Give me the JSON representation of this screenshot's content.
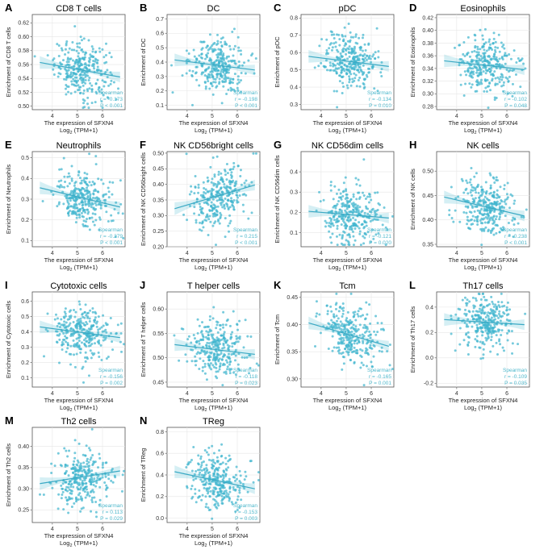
{
  "figure": {
    "xlabel_line1": "The expression of SFXN4",
    "xlabel_line2_main": "Log",
    "xlabel_line2_sub": "2",
    "xlabel_line2_rest": " (TPM+1)",
    "point_color": "#41b6cf",
    "line_color": "#3aa9c4"
  },
  "chart_data": [
    {
      "letter": "A",
      "title": "CD8 T cells",
      "type": "scatter",
      "ylabel": "Enrichment of CD8 T cells",
      "xlim": [
        3.2,
        6.9
      ],
      "xticks": [
        4,
        5,
        6
      ],
      "ylim": [
        0.495,
        0.632
      ],
      "yticks": [
        0.5,
        0.52,
        0.54,
        0.56,
        0.58,
        0.6,
        0.62
      ],
      "ytick_labels": [
        "0.50",
        "0.52",
        "0.54",
        "0.56",
        "0.58",
        "0.60",
        "0.62"
      ],
      "fit": {
        "y_start": 0.563,
        "y_end": 0.542
      },
      "stats": {
        "method": "Spearman",
        "r": "r = -0.173",
        "p": "P < 0.001"
      }
    },
    {
      "letter": "B",
      "title": "DC",
      "type": "scatter",
      "ylabel": "Enrichment of DC",
      "xlim": [
        3.2,
        6.9
      ],
      "xticks": [
        4,
        5,
        6
      ],
      "ylim": [
        0.07,
        0.73
      ],
      "yticks": [
        0.1,
        0.2,
        0.3,
        0.4,
        0.5,
        0.6,
        0.7
      ],
      "ytick_labels": [
        "0.1",
        "0.2",
        "0.3",
        "0.4",
        "0.5",
        "0.6",
        "0.7"
      ],
      "fit": {
        "y_start": 0.415,
        "y_end": 0.345
      },
      "stats": {
        "method": "Spearman",
        "r": "r = -0.198",
        "p": "P < 0.001"
      }
    },
    {
      "letter": "C",
      "title": "pDC",
      "type": "scatter",
      "ylabel": "Enrichment of pDC",
      "xlim": [
        3.2,
        6.9
      ],
      "xticks": [
        4,
        5,
        6
      ],
      "ylim": [
        0.27,
        0.82
      ],
      "yticks": [
        0.3,
        0.4,
        0.5,
        0.6,
        0.7,
        0.8
      ],
      "ytick_labels": [
        "0.3",
        "0.4",
        "0.5",
        "0.6",
        "0.7",
        "0.8"
      ],
      "fit": {
        "y_start": 0.578,
        "y_end": 0.52
      },
      "stats": {
        "method": "Spearman",
        "r": "r = -0.134",
        "p": "P = 0.010"
      }
    },
    {
      "letter": "D",
      "title": "Eosinophils",
      "type": "scatter",
      "ylabel": "Enrichment of Eosinophils",
      "xlim": [
        3.2,
        6.9
      ],
      "xticks": [
        4,
        5,
        6
      ],
      "ylim": [
        0.275,
        0.425
      ],
      "yticks": [
        0.28,
        0.3,
        0.32,
        0.34,
        0.36,
        0.38,
        0.4,
        0.42
      ],
      "ytick_labels": [
        "0.28",
        "0.30",
        "0.32",
        "0.34",
        "0.36",
        "0.38",
        "0.40",
        "0.42"
      ],
      "fit": {
        "y_start": 0.352,
        "y_end": 0.338
      },
      "stats": {
        "method": "Spearman",
        "r": "r = -0.102",
        "p": "P = 0.048"
      }
    },
    {
      "letter": "E",
      "title": "Neutrophils",
      "type": "scatter",
      "ylabel": "Enrichment of Neutrophils",
      "xlim": [
        3.2,
        6.9
      ],
      "xticks": [
        4,
        5,
        6
      ],
      "ylim": [
        0.07,
        0.53
      ],
      "yticks": [
        0.1,
        0.2,
        0.3,
        0.4,
        0.5
      ],
      "ytick_labels": [
        "0.1",
        "0.2",
        "0.3",
        "0.4",
        "0.5"
      ],
      "fit": {
        "y_start": 0.355,
        "y_end": 0.262
      },
      "stats": {
        "method": "Spearman",
        "r": "r = -0.279",
        "p": "P < 0.001"
      }
    },
    {
      "letter": "F",
      "title": "NK CD56bright cells",
      "type": "scatter",
      "ylabel": "Enrichment of NK CD56bright cells",
      "xlim": [
        3.2,
        6.9
      ],
      "xticks": [
        4,
        5,
        6
      ],
      "ylim": [
        0.2,
        0.505
      ],
      "yticks": [
        0.2,
        0.25,
        0.3,
        0.35,
        0.4,
        0.45,
        0.5
      ],
      "ytick_labels": [
        "0.20",
        "0.25",
        "0.30",
        "0.35",
        "0.40",
        "0.45",
        "0.50"
      ],
      "fit": {
        "y_start": 0.322,
        "y_end": 0.398
      },
      "stats": {
        "method": "Spearman",
        "r": "r = 0.215",
        "p": "P < 0.001"
      }
    },
    {
      "letter": "G",
      "title": "NK CD56dim cells",
      "type": "scatter",
      "ylabel": "Enrichment of NK CD56dim cells",
      "xlim": [
        3.2,
        6.9
      ],
      "xticks": [
        4,
        5,
        6
      ],
      "ylim": [
        0.03,
        0.5
      ],
      "yticks": [
        0.1,
        0.2,
        0.3,
        0.4
      ],
      "ytick_labels": [
        "0.1",
        "0.2",
        "0.3",
        "0.4"
      ],
      "fit": {
        "y_start": 0.205,
        "y_end": 0.172
      },
      "stats": {
        "method": "Spearman",
        "r": "r = -0.121",
        "p": "P = 0.020"
      }
    },
    {
      "letter": "H",
      "title": "NK cells",
      "type": "scatter",
      "ylabel": "Enrichment of NK cells",
      "xlim": [
        3.2,
        6.9
      ],
      "xticks": [
        4,
        5,
        6
      ],
      "ylim": [
        0.345,
        0.54
      ],
      "yticks": [
        0.35,
        0.4,
        0.45,
        0.5
      ],
      "ytick_labels": [
        "0.35",
        "0.40",
        "0.45",
        "0.50"
      ],
      "fit": {
        "y_start": 0.447,
        "y_end": 0.408
      },
      "stats": {
        "method": "Spearman",
        "r": "r = -0.238",
        "p": "P < 0.001"
      }
    },
    {
      "letter": "I",
      "title": "Cytotoxic cells",
      "type": "scatter",
      "ylabel": "Enrichment of Cytotoxic cells",
      "xlim": [
        3.2,
        6.9
      ],
      "xticks": [
        4,
        5,
        6
      ],
      "ylim": [
        0.04,
        0.66
      ],
      "yticks": [
        0.1,
        0.2,
        0.3,
        0.4,
        0.5,
        0.6
      ],
      "ytick_labels": [
        "0.1",
        "0.2",
        "0.3",
        "0.4",
        "0.5",
        "0.6"
      ],
      "fit": {
        "y_start": 0.432,
        "y_end": 0.362
      },
      "stats": {
        "method": "Spearman",
        "r": "r = -0.156",
        "p": "P = 0.002"
      }
    },
    {
      "letter": "J",
      "title": "T helper cells",
      "type": "scatter",
      "ylabel": "Enrichment of T helper cells",
      "xlim": [
        3.2,
        6.9
      ],
      "xticks": [
        4,
        5,
        6
      ],
      "ylim": [
        0.44,
        0.635
      ],
      "yticks": [
        0.45,
        0.5,
        0.55,
        0.6
      ],
      "ytick_labels": [
        "0.45",
        "0.50",
        "0.55",
        "0.60"
      ],
      "fit": {
        "y_start": 0.527,
        "y_end": 0.507
      },
      "stats": {
        "method": "Spearman",
        "r": "r = -0.118",
        "p": "P = 0.023"
      }
    },
    {
      "letter": "K",
      "title": "Tcm",
      "type": "scatter",
      "ylabel": "Enrichment of Tcm",
      "xlim": [
        3.2,
        6.9
      ],
      "xticks": [
        4,
        5,
        6
      ],
      "ylim": [
        0.285,
        0.46
      ],
      "yticks": [
        0.3,
        0.35,
        0.4,
        0.45
      ],
      "ytick_labels": [
        "0.30",
        "0.35",
        "0.40",
        "0.45"
      ],
      "fit": {
        "y_start": 0.403,
        "y_end": 0.36
      },
      "stats": {
        "method": "Spearman",
        "r": "r = -0.165",
        "p": "P = 0.001"
      }
    },
    {
      "letter": "L",
      "title": "Th17 cells",
      "type": "scatter",
      "ylabel": "Enrichment of Th17 cells",
      "xlim": [
        3.2,
        6.9
      ],
      "xticks": [
        4,
        5,
        6
      ],
      "ylim": [
        -0.23,
        0.52
      ],
      "yticks": [
        -0.2,
        0.0,
        0.2,
        0.4
      ],
      "ytick_labels": [
        "-0.2",
        "0.0",
        "0.2",
        "0.4"
      ],
      "fit": {
        "y_start": 0.302,
        "y_end": 0.262
      },
      "stats": {
        "method": "Spearman",
        "r": "r = -0.109",
        "p": "P = 0.035"
      }
    },
    {
      "letter": "M",
      "title": "Th2 cells",
      "type": "scatter",
      "ylabel": "Enrichment of Th2 cells",
      "xlim": [
        3.2,
        6.9
      ],
      "xticks": [
        4,
        5,
        6
      ],
      "ylim": [
        0.22,
        0.445
      ],
      "yticks": [
        0.25,
        0.3,
        0.35,
        0.4
      ],
      "ytick_labels": [
        "0.25",
        "0.30",
        "0.35",
        "0.40"
      ],
      "fit": {
        "y_start": 0.312,
        "y_end": 0.342
      },
      "stats": {
        "method": "Spearman",
        "r": "r = 0.113",
        "p": "P = 0.029"
      }
    },
    {
      "letter": "N",
      "title": "TReg",
      "type": "scatter",
      "ylabel": "Enrichment of TReg",
      "xlim": [
        3.2,
        6.9
      ],
      "xticks": [
        4,
        5,
        6
      ],
      "ylim": [
        -0.04,
        0.84
      ],
      "yticks": [
        0.0,
        0.2,
        0.4,
        0.6,
        0.8
      ],
      "ytick_labels": [
        "0.0",
        "0.2",
        "0.4",
        "0.6",
        "0.8"
      ],
      "fit": {
        "y_start": 0.43,
        "y_end": 0.272
      },
      "stats": {
        "method": "Spearman",
        "r": "r = -0.153",
        "p": "P = 0.003"
      }
    }
  ]
}
